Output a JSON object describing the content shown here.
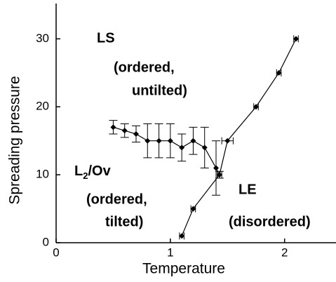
{
  "chart_data": {
    "type": "line",
    "xlabel": "Temperature",
    "ylabel": "Spreading pressure",
    "xlim": [
      0,
      2.45
    ],
    "ylim": [
      0,
      35.2
    ],
    "xticks": [
      0,
      1,
      2
    ],
    "yticks": [
      0,
      10,
      20,
      30
    ],
    "series": [
      {
        "color": "#000000",
        "x": [
          0.5,
          0.6,
          0.7,
          0.8,
          0.9,
          1.0,
          1.1,
          1.2,
          1.3,
          1.4,
          1.43
        ],
        "values": [
          17,
          16.5,
          16,
          15,
          15,
          15,
          14,
          15,
          14,
          11,
          10
        ],
        "yerr": [
          1,
          1,
          1.2,
          2.5,
          2.5,
          2.5,
          2,
          2,
          3,
          4,
          0.5
        ]
      },
      {
        "color": "#000000",
        "x": [
          1.1,
          1.2,
          1.43,
          1.5,
          1.75,
          1.95,
          2.1
        ],
        "values": [
          1,
          5,
          10,
          15,
          20,
          25,
          30
        ],
        "xerr": [
          0.02,
          0.02,
          0.02,
          0.05,
          0.02,
          0.02,
          0.02
        ]
      }
    ],
    "annotations": [
      "LS",
      "(ordered,",
      "untilted)",
      {
        "text": "L",
        "subscript": "2",
        "suffix": "/Ov"
      },
      "(ordered,",
      "tilted)",
      "LE",
      "(disordered)"
    ]
  }
}
